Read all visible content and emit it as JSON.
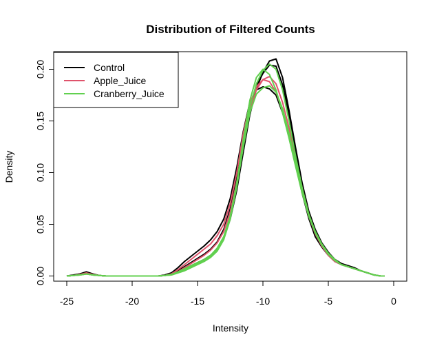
{
  "chart_data": {
    "type": "line",
    "title": "Distribution of Filtered Counts",
    "xlabel": "Intensity",
    "ylabel": "Density",
    "xlim": [
      -26,
      1
    ],
    "ylim": [
      -0.005,
      0.217
    ],
    "x_ticks": [
      -25,
      -20,
      -15,
      -10,
      -5,
      0
    ],
    "x_tick_labels": [
      "-25",
      "-20",
      "-15",
      "-10",
      "-5",
      "0"
    ],
    "y_ticks": [
      0.0,
      0.05,
      0.1,
      0.15,
      0.2
    ],
    "y_tick_labels": [
      "0.00",
      "0.05",
      "0.10",
      "0.15",
      "0.20"
    ],
    "grid": false,
    "legend": {
      "position": "top-left",
      "entries": [
        {
          "name": "Control",
          "color": "#000000"
        },
        {
          "name": "Apple_Juice",
          "color": "#DF536B"
        },
        {
          "name": "Cranberry_Juice",
          "color": "#61D04F"
        }
      ]
    },
    "x": [
      -25,
      -24.5,
      -24,
      -23.5,
      -23,
      -22.5,
      -22,
      -20,
      -18,
      -17.5,
      -17,
      -16.5,
      -16,
      -15.5,
      -15,
      -14.5,
      -14,
      -13.5,
      -13,
      -12.5,
      -12,
      -11.5,
      -11,
      -10.5,
      -10,
      -9.5,
      -9,
      -8.5,
      -8,
      -7.5,
      -7,
      -6.5,
      -6,
      -5.5,
      -5,
      -4.5,
      -4,
      -3.5,
      -3,
      -2.5,
      -2,
      -1.5,
      -1,
      -0.7
    ],
    "series": [
      {
        "group": "Control",
        "color": "#000000",
        "values": [
          0,
          0.001,
          0.002,
          0.004,
          0.002,
          0.0005,
          0,
          0,
          0,
          0.001,
          0.003,
          0.008,
          0.014,
          0.019,
          0.024,
          0.029,
          0.035,
          0.043,
          0.055,
          0.075,
          0.105,
          0.14,
          0.168,
          0.18,
          0.183,
          0.181,
          0.175,
          0.158,
          0.135,
          0.108,
          0.08,
          0.056,
          0.038,
          0.028,
          0.02,
          0.014,
          0.011,
          0.009,
          0.007,
          0.005,
          0.003,
          0.001,
          0,
          0
        ]
      },
      {
        "group": "Control",
        "color": "#000000",
        "values": [
          0,
          0.0005,
          0.002,
          0.003,
          0.0015,
          0.0005,
          0,
          0,
          0,
          0.0005,
          0.002,
          0.005,
          0.009,
          0.013,
          0.017,
          0.021,
          0.026,
          0.033,
          0.045,
          0.065,
          0.094,
          0.13,
          0.163,
          0.184,
          0.196,
          0.204,
          0.203,
          0.185,
          0.155,
          0.12,
          0.088,
          0.062,
          0.044,
          0.031,
          0.022,
          0.016,
          0.012,
          0.01,
          0.008,
          0.005,
          0.003,
          0.001,
          0,
          0
        ]
      },
      {
        "group": "Control",
        "color": "#000000",
        "values": [
          0,
          0.0005,
          0.0015,
          0.0025,
          0.001,
          0.0005,
          0,
          0,
          0,
          0.0005,
          0.002,
          0.004,
          0.007,
          0.01,
          0.013,
          0.016,
          0.02,
          0.026,
          0.036,
          0.055,
          0.083,
          0.12,
          0.156,
          0.181,
          0.197,
          0.208,
          0.21,
          0.192,
          0.16,
          0.124,
          0.09,
          0.063,
          0.045,
          0.032,
          0.023,
          0.016,
          0.012,
          0.009,
          0.007,
          0.005,
          0.003,
          0.001,
          0,
          0
        ]
      },
      {
        "group": "Apple_Juice",
        "color": "#DF536B",
        "values": [
          0,
          0.0005,
          0.0015,
          0.003,
          0.0015,
          0.0005,
          0,
          0,
          0,
          0.0005,
          0.002,
          0.006,
          0.011,
          0.016,
          0.021,
          0.026,
          0.031,
          0.039,
          0.05,
          0.07,
          0.1,
          0.138,
          0.167,
          0.183,
          0.19,
          0.188,
          0.178,
          0.16,
          0.136,
          0.108,
          0.081,
          0.058,
          0.041,
          0.029,
          0.02,
          0.014,
          0.011,
          0.009,
          0.007,
          0.005,
          0.003,
          0.001,
          0,
          0
        ]
      },
      {
        "group": "Apple_Juice",
        "color": "#DF536B",
        "values": [
          0,
          0.0005,
          0.001,
          0.002,
          0.001,
          0.0005,
          0,
          0,
          0,
          0.0005,
          0.0015,
          0.004,
          0.008,
          0.012,
          0.016,
          0.02,
          0.025,
          0.032,
          0.043,
          0.062,
          0.091,
          0.128,
          0.16,
          0.18,
          0.19,
          0.193,
          0.186,
          0.168,
          0.143,
          0.114,
          0.085,
          0.06,
          0.042,
          0.03,
          0.021,
          0.015,
          0.011,
          0.009,
          0.007,
          0.005,
          0.003,
          0.001,
          0,
          0
        ]
      },
      {
        "group": "Cranberry_Juice",
        "color": "#61D04F",
        "values": [
          0,
          0.0005,
          0.001,
          0.002,
          0.001,
          0.0005,
          0,
          0,
          0,
          0.0005,
          0.001,
          0.003,
          0.006,
          0.009,
          0.012,
          0.015,
          0.019,
          0.025,
          0.036,
          0.057,
          0.09,
          0.132,
          0.17,
          0.192,
          0.2,
          0.195,
          0.18,
          0.158,
          0.133,
          0.106,
          0.08,
          0.058,
          0.042,
          0.03,
          0.021,
          0.015,
          0.011,
          0.009,
          0.007,
          0.005,
          0.003,
          0.001,
          0,
          0
        ]
      },
      {
        "group": "Cranberry_Juice",
        "color": "#61D04F",
        "values": [
          0,
          0.0005,
          0.001,
          0.002,
          0.001,
          0.0005,
          0,
          0,
          0,
          0.0005,
          0.001,
          0.003,
          0.005,
          0.008,
          0.011,
          0.014,
          0.018,
          0.024,
          0.035,
          0.055,
          0.086,
          0.126,
          0.163,
          0.186,
          0.199,
          0.205,
          0.2,
          0.18,
          0.15,
          0.116,
          0.085,
          0.06,
          0.043,
          0.031,
          0.022,
          0.016,
          0.011,
          0.009,
          0.007,
          0.005,
          0.003,
          0.001,
          0,
          0
        ]
      },
      {
        "group": "Cranberry_Juice",
        "color": "#61D04F",
        "values": [
          0,
          0.0005,
          0.001,
          0.002,
          0.001,
          0.0005,
          0,
          0,
          0,
          0.0005,
          0.0015,
          0.004,
          0.007,
          0.01,
          0.013,
          0.016,
          0.02,
          0.027,
          0.038,
          0.058,
          0.088,
          0.125,
          0.158,
          0.176,
          0.182,
          0.184,
          0.178,
          0.162,
          0.138,
          0.11,
          0.082,
          0.059,
          0.042,
          0.03,
          0.021,
          0.015,
          0.011,
          0.009,
          0.007,
          0.005,
          0.003,
          0.001,
          0,
          0
        ]
      }
    ]
  }
}
